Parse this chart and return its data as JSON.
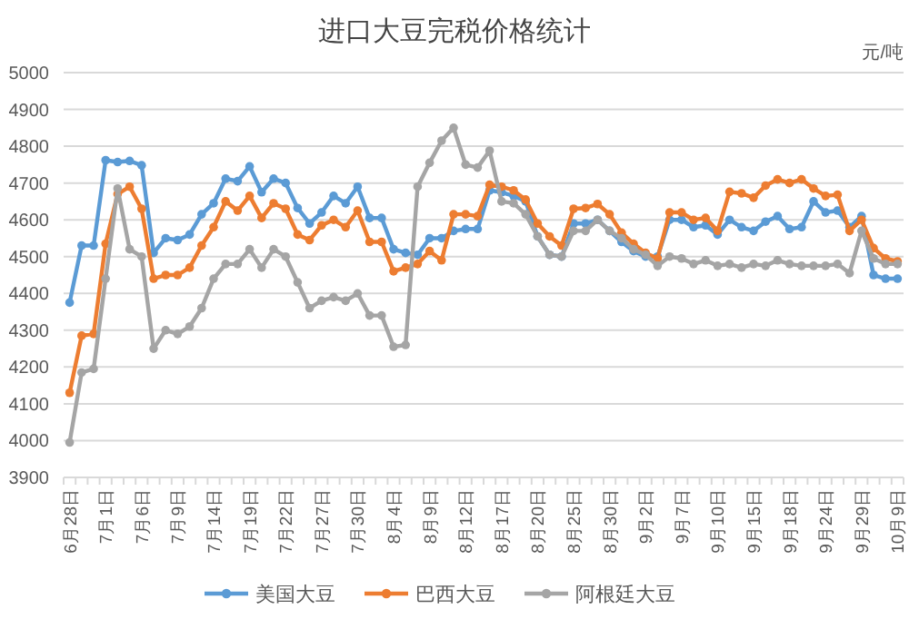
{
  "chart_data": {
    "type": "line",
    "title": "进口大豆完税价格统计",
    "annotations": [
      "元/吨"
    ],
    "categories": [
      "6月28日",
      null,
      null,
      "7月1日",
      null,
      null,
      "7月6日",
      null,
      null,
      "7月9日",
      null,
      null,
      "7月14日",
      null,
      null,
      "7月19日",
      null,
      null,
      "7月22日",
      null,
      null,
      "7月27日",
      null,
      null,
      "7月30日",
      null,
      null,
      "8月4日",
      null,
      null,
      "8月9日",
      null,
      null,
      "8月12日",
      null,
      null,
      "8月17日",
      null,
      null,
      "8月20日",
      null,
      null,
      "8月25日",
      null,
      null,
      "8月30日",
      null,
      null,
      "9月2日",
      null,
      null,
      "9月7日",
      null,
      null,
      "9月10日",
      null,
      null,
      "9月15日",
      null,
      null,
      "9月18日",
      null,
      null,
      "9月24日",
      null,
      null,
      "9月29日",
      null,
      null,
      "10月9日"
    ],
    "series": [
      {
        "name": "美国大豆",
        "color": "#5b9bd5",
        "values": [
          4375,
          4530,
          4530,
          4762,
          4757,
          4760,
          4748,
          4510,
          4550,
          4545,
          4560,
          4615,
          4645,
          4712,
          4705,
          4745,
          4675,
          4712,
          4700,
          4632,
          4590,
          4620,
          4665,
          4645,
          4690,
          4605,
          4605,
          4520,
          4510,
          4505,
          4550,
          4550,
          4570,
          4575,
          4575,
          4680,
          4675,
          4665,
          4650,
          4555,
          4505,
          4500,
          4590,
          4590,
          4600,
          4570,
          4540,
          4515,
          4500,
          4500,
          4600,
          4600,
          4580,
          4585,
          4560,
          4600,
          4580,
          4570,
          4595,
          4610,
          4575,
          4580,
          4650,
          4620,
          4625,
          4580,
          4610,
          4450,
          4440,
          4440
        ]
      },
      {
        "name": "巴西大豆",
        "color": "#ed7d31",
        "values": [
          4130,
          4285,
          4290,
          4535,
          4670,
          4690,
          4630,
          4440,
          4450,
          4450,
          4470,
          4530,
          4580,
          4650,
          4625,
          4665,
          4605,
          4645,
          4630,
          4560,
          4545,
          4585,
          4600,
          4580,
          4625,
          4540,
          4540,
          4460,
          4470,
          4480,
          4515,
          4490,
          4615,
          4615,
          4610,
          4695,
          4690,
          4680,
          4655,
          4590,
          4555,
          4530,
          4630,
          4632,
          4643,
          4615,
          4565,
          4535,
          4510,
          4495,
          4620,
          4620,
          4600,
          4605,
          4570,
          4676,
          4672,
          4660,
          4693,
          4710,
          4700,
          4710,
          4685,
          4665,
          4668,
          4570,
          4600,
          4523,
          4495,
          4487
        ]
      },
      {
        "name": "阿根廷大豆",
        "color": "#a5a5a5",
        "values": [
          3995,
          4185,
          4195,
          4440,
          4685,
          4520,
          4500,
          4250,
          4300,
          4290,
          4310,
          4360,
          4440,
          4480,
          4480,
          4520,
          4470,
          4520,
          4500,
          4430,
          4360,
          4380,
          4390,
          4380,
          4400,
          4340,
          4340,
          4255,
          4260,
          4690,
          4755,
          4815,
          4850,
          4750,
          4742,
          4788,
          4650,
          4645,
          4615,
          4555,
          4505,
          4500,
          4570,
          4570,
          4600,
          4570,
          4550,
          4520,
          4505,
          4475,
          4500,
          4495,
          4480,
          4490,
          4475,
          4480,
          4470,
          4480,
          4475,
          4490,
          4480,
          4475,
          4475,
          4475,
          4480,
          4455,
          4570,
          4495,
          4480,
          4480
        ]
      }
    ],
    "ylim": [
      3900,
      5000
    ],
    "yticks": [
      3900,
      4000,
      4100,
      4200,
      4300,
      4400,
      4500,
      4600,
      4700,
      4800,
      4900,
      5000
    ],
    "grid": "y",
    "legend": "bottom",
    "marker": "circle"
  }
}
